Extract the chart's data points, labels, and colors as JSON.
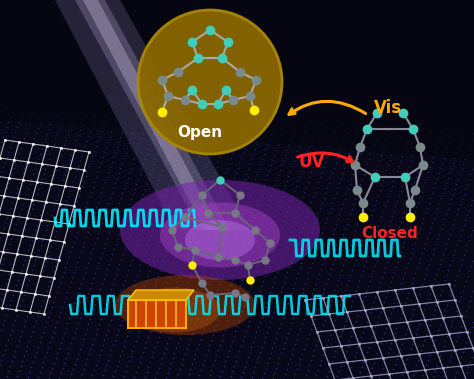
{
  "bg_color": "#080818",
  "surface_dot_color": "#2a2a88",
  "open_label": "Open",
  "closed_label": "Closed",
  "vis_label": "Vis",
  "uv_label": "UV",
  "open_label_color": "#ffffff",
  "closed_label_color": "#ff2222",
  "vis_label_color": "#ffaa00",
  "uv_label_color": "#ff2222",
  "teal_color": "#44ccbb",
  "yellow_color": "#ffee00",
  "gray_color": "#888899",
  "open_circle_fill": "#886600",
  "closed_bg_color": "#0033cc",
  "beam_color": "#ccbbff",
  "cyan_color": "#00eeff",
  "white_color": "#ffffff",
  "orange_color": "#dd4400",
  "gold_color": "#cc8800",
  "purple_glow": "#8833bb",
  "warm_glow": "#aa4400"
}
